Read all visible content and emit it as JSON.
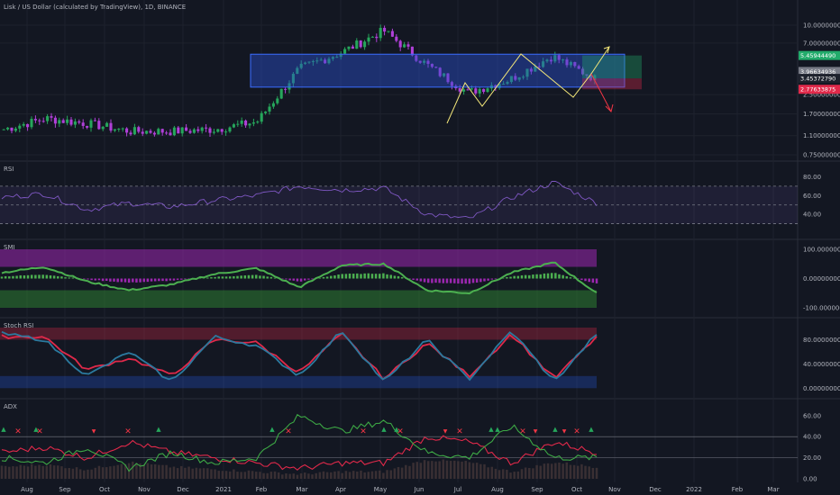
{
  "colors": {
    "bg": "#131722",
    "grid": "#1e222d",
    "axis_text": "#b2b5be",
    "candle_up": "#26a65b",
    "candle_down": "#b040d8",
    "box_fill": "#2a4fcf",
    "rsi_line": "#7e57c2",
    "smi_pos": "#4caf50",
    "smi_neg": "#9c27b0",
    "stoch_k": "#2b7a9f",
    "stoch_d": "#e0294a",
    "adx_plus": "#3da845",
    "adx_minus": "#e0294a",
    "marker_red": "#f23645",
    "marker_green": "#26a65b"
  },
  "header": {
    "title": "Lisk / US Dollar (calculated by TradingView), 1D, BINANCE"
  },
  "price_badges": [
    {
      "value": "5.45944490",
      "color": "#22ab6b"
    },
    {
      "value": "3.96634936",
      "color": "#787b86"
    },
    {
      "value": "3.45372790",
      "color": "#1e222d"
    },
    {
      "value": "2.77633875",
      "color": "#e0294a"
    }
  ],
  "x_axis": {
    "labels": [
      "Aug",
      "Sep",
      "Oct",
      "Nov",
      "Dec",
      "2021",
      "Feb",
      "Mar",
      "Apr",
      "May",
      "Jun",
      "Jul",
      "Aug",
      "Sep",
      "Oct",
      "Nov",
      "Dec",
      "2022",
      "Feb",
      "Mar"
    ]
  },
  "chart_data": [
    {
      "name": "price",
      "type": "candlestick",
      "title": "Lisk / US Dollar (calculated by TradingView), 1D, BINANCE",
      "scale": "log",
      "y_ticks": [
        "10.00000000",
        "7.00000000",
        "2.50000000",
        "1.70000000",
        "1.10000000",
        "0.75000000"
      ],
      "x": [
        "Aug",
        "Sep",
        "Oct",
        "Nov",
        "Dec",
        "2021",
        "Feb",
        "Mar",
        "Apr",
        "May",
        "Jun",
        "Jul",
        "Aug",
        "Sep",
        "Oct"
      ],
      "close": [
        1.25,
        1.55,
        1.4,
        1.2,
        1.2,
        1.25,
        1.45,
        4.2,
        5.8,
        9.0,
        4.6,
        2.6,
        3.4,
        5.4,
        3.45
      ],
      "annotations": {
        "range_box": {
          "low": 2.9,
          "high": 5.6
        },
        "long_target": 5.4594449,
        "entry": 3.4537279,
        "stop": 2.77633875
      }
    },
    {
      "name": "RSI",
      "type": "line",
      "y_ticks": [
        "80.00",
        "60.00",
        "40.00"
      ],
      "levels": [
        70,
        50,
        30
      ],
      "values": [
        58,
        62,
        45,
        52,
        48,
        55,
        60,
        70,
        66,
        68,
        40,
        35,
        58,
        74,
        52
      ]
    },
    {
      "name": "SMI",
      "type": "line",
      "y_ticks": [
        "100.00000000",
        "0.00000000",
        "-100.00000000"
      ],
      "bands": [
        40,
        -40
      ],
      "values": [
        20,
        40,
        -10,
        -40,
        -20,
        15,
        35,
        -30,
        45,
        50,
        -40,
        -50,
        20,
        55,
        -50
      ]
    },
    {
      "name": "Stoch RSI",
      "type": "line",
      "y_ticks": [
        "80.00000000",
        "40.00000000",
        "0.00000000"
      ],
      "bands": [
        80,
        20
      ],
      "k": [
        90,
        80,
        20,
        60,
        10,
        85,
        70,
        20,
        95,
        10,
        80,
        15,
        95,
        10,
        90
      ],
      "d": [
        85,
        85,
        30,
        50,
        20,
        80,
        75,
        25,
        90,
        15,
        75,
        20,
        90,
        15,
        85
      ]
    },
    {
      "name": "ADX",
      "type": "line",
      "y_ticks": [
        "60.00",
        "40.00",
        "20.00",
        "0.00"
      ],
      "plus_di": [
        20,
        15,
        30,
        10,
        25,
        15,
        20,
        60,
        45,
        55,
        25,
        20,
        50,
        20,
        20
      ],
      "minus_di": [
        25,
        30,
        20,
        35,
        25,
        20,
        15,
        10,
        15,
        15,
        40,
        35,
        15,
        35,
        25
      ]
    }
  ]
}
